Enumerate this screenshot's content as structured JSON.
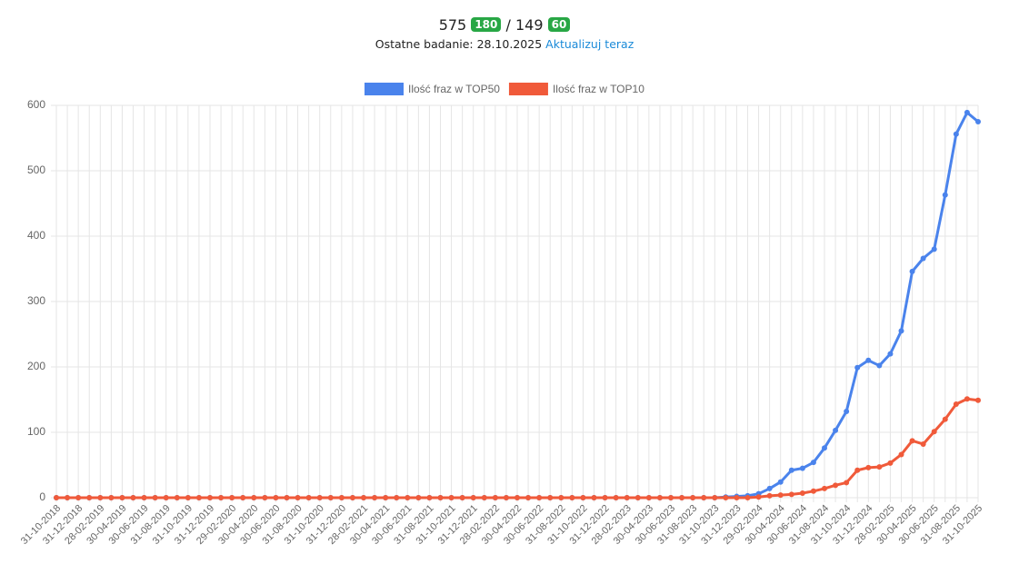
{
  "header": {
    "top50": "575",
    "top50_change": "180",
    "separator": "/",
    "top10": "149",
    "top10_change": "60",
    "last_check": "Ostatne badanie: 28.10.2025",
    "update_link": "Aktualizuj teraz"
  },
  "chart_data": {
    "type": "line",
    "categories": [
      "31-10-2018",
      null,
      "31-12-2018",
      null,
      "28-02-2019",
      null,
      "30-04-2019",
      null,
      "30-06-2019",
      null,
      "31-08-2019",
      null,
      "31-10-2019",
      null,
      "31-12-2019",
      null,
      "29-02-2020",
      null,
      "30-04-2020",
      null,
      "30-06-2020",
      null,
      "31-08-2020",
      null,
      "31-10-2020",
      null,
      "31-12-2020",
      null,
      "28-02-2021",
      null,
      "30-04-2021",
      null,
      "30-06-2021",
      null,
      "31-08-2021",
      null,
      "31-10-2021",
      null,
      "31-12-2021",
      null,
      "28-02-2022",
      null,
      "30-04-2022",
      null,
      "30-06-2022",
      null,
      "31-08-2022",
      null,
      "31-10-2022",
      null,
      "31-12-2022",
      null,
      "28-02-2023",
      null,
      "30-04-2023",
      null,
      "30-06-2023",
      null,
      "31-08-2023",
      null,
      "31-10-2023",
      null,
      "31-12-2023",
      null,
      "29-02-2024",
      null,
      "30-04-2024",
      null,
      "30-06-2024",
      null,
      "31-08-2024",
      null,
      "31-10-2024",
      null,
      "31-12-2024",
      null,
      "28-02-2025",
      null,
      "30-04-2025",
      null,
      "30-06-2025",
      null,
      "31-08-2025",
      null,
      "31-10-2025"
    ],
    "series": [
      {
        "name": "Ilość fraz w TOP50",
        "color": "#4a83ec",
        "values": [
          0,
          0,
          0,
          0,
          0,
          0,
          0,
          0,
          0,
          0,
          0,
          0,
          0,
          0,
          0,
          0,
          0,
          0,
          0,
          0,
          0,
          0,
          0,
          0,
          0,
          0,
          0,
          0,
          0,
          0,
          0,
          0,
          0,
          0,
          0,
          0,
          0,
          0,
          0,
          0,
          0,
          0,
          0,
          0,
          0,
          0,
          0,
          0,
          0,
          0,
          0,
          0,
          0,
          0,
          0,
          0,
          0,
          0,
          0,
          0,
          0,
          1,
          2,
          3,
          6,
          14,
          24,
          42,
          45,
          54,
          76,
          103,
          132,
          199,
          210,
          202,
          220,
          255,
          346,
          366,
          380,
          463,
          556,
          589,
          575
        ]
      },
      {
        "name": "Ilość fraz w TOP10",
        "color": "#f05a3a",
        "values": [
          0,
          0,
          0,
          0,
          0,
          0,
          0,
          0,
          0,
          0,
          0,
          0,
          0,
          0,
          0,
          0,
          0,
          0,
          0,
          0,
          0,
          0,
          0,
          0,
          0,
          0,
          0,
          0,
          0,
          0,
          0,
          0,
          0,
          0,
          0,
          0,
          0,
          0,
          0,
          0,
          0,
          0,
          0,
          0,
          0,
          0,
          0,
          0,
          0,
          0,
          0,
          0,
          0,
          0,
          0,
          0,
          0,
          0,
          0,
          0,
          0,
          0,
          0,
          0,
          1,
          3,
          4,
          5,
          7,
          10,
          14,
          19,
          23,
          42,
          46,
          47,
          53,
          66,
          87,
          82,
          101,
          120,
          143,
          151,
          149
        ]
      }
    ],
    "ylim": [
      0,
      600
    ],
    "yticks": [
      0,
      100,
      200,
      300,
      400,
      500,
      600
    ],
    "grid": true,
    "legend": "top"
  }
}
